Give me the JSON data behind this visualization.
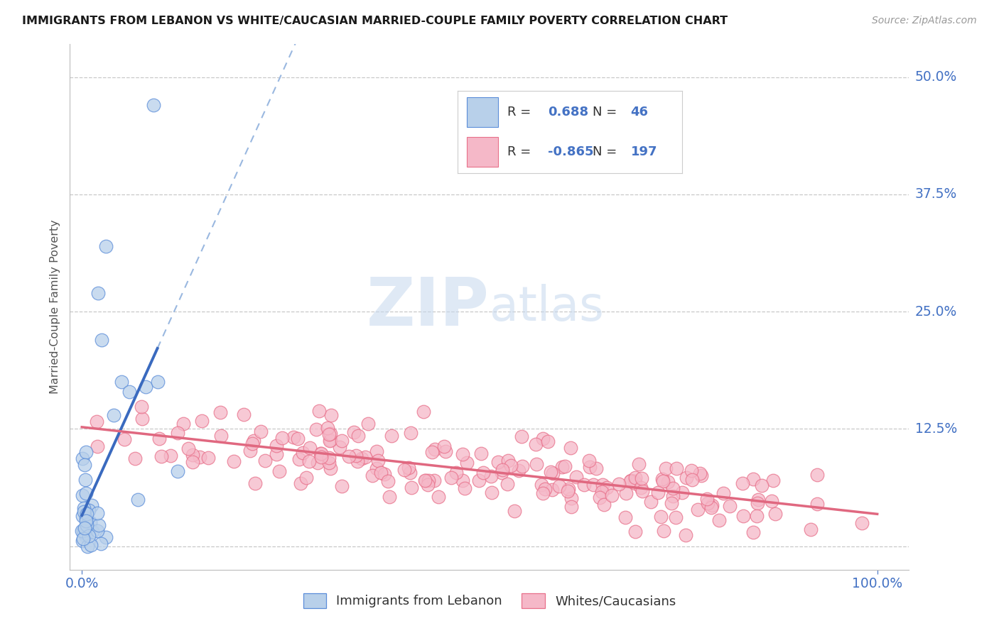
{
  "title": "IMMIGRANTS FROM LEBANON VS WHITE/CAUCASIAN MARRIED-COUPLE FAMILY POVERTY CORRELATION CHART",
  "source": "Source: ZipAtlas.com",
  "ylabel": "Married-Couple Family Poverty",
  "watermark_zip": "ZIP",
  "watermark_atlas": "atlas",
  "legend_box": {
    "blue_r": "0.688",
    "blue_n": "46",
    "pink_r": "-0.865",
    "pink_n": "197"
  },
  "ytick_vals": [
    0.0,
    0.125,
    0.25,
    0.375,
    0.5
  ],
  "ytick_labels": [
    "",
    "12.5%",
    "25.0%",
    "37.5%",
    "50.0%"
  ],
  "xtick_vals": [
    0.0,
    1.0
  ],
  "xtick_labels": [
    "0.0%",
    "100.0%"
  ],
  "blue_fill": "#b8d0ea",
  "blue_edge": "#5b8dd9",
  "pink_fill": "#f5b8c8",
  "pink_edge": "#e8708a",
  "blue_line": "#3a6abf",
  "blue_dash": "#9ab8e0",
  "pink_line": "#e06880",
  "background": "#ffffff",
  "grid_color": "#c8c8c8",
  "title_color": "#1a1a1a",
  "label_color": "#4472c4",
  "axis_color": "#bbbbbb",
  "seed": 7
}
